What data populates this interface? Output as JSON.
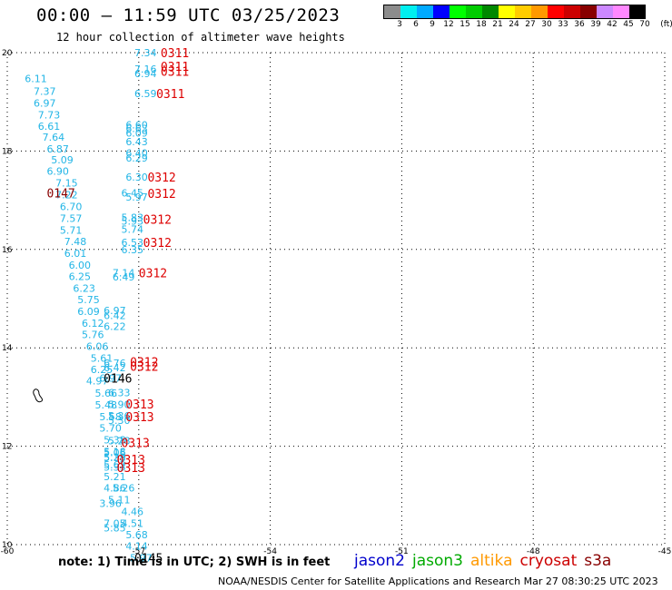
{
  "header": {
    "title": "00:00 – 11:59 UTC 03/25/2023",
    "subtitle": "12 hour collection of altimeter wave heights"
  },
  "colorbar": {
    "colors": [
      "#8c8c8c",
      "#00f0f0",
      "#00aaff",
      "#0000ff",
      "#00ff00",
      "#00cc00",
      "#008800",
      "#ffff00",
      "#ffcc00",
      "#ff9900",
      "#ff0000",
      "#cc0000",
      "#880000",
      "#cc88ff",
      "#ff88ff",
      "#000000"
    ],
    "labels": [
      "3",
      "6",
      "9",
      "12",
      "15",
      "18",
      "21",
      "24",
      "27",
      "30",
      "33",
      "36",
      "39",
      "42",
      "45",
      "70",
      "(ft)"
    ]
  },
  "map": {
    "x_axis": {
      "ticks": [
        "-60",
        "-57",
        "-54",
        "-51",
        "-48",
        "-45"
      ],
      "range": [
        -60,
        -45
      ]
    },
    "y_axis": {
      "ticks": [
        "10",
        "12",
        "14",
        "16",
        "18",
        "20"
      ],
      "range": [
        10,
        20
      ]
    },
    "swh_points": [
      {
        "lon": -59.6,
        "lat": 19.47,
        "value": "6.11",
        "color": "#22b5e6"
      },
      {
        "lon": -59.4,
        "lat": 19.22,
        "value": "7.37",
        "color": "#22b5e6"
      },
      {
        "lon": -59.4,
        "lat": 18.98,
        "value": "6.97",
        "color": "#22b5e6"
      },
      {
        "lon": -59.3,
        "lat": 18.74,
        "value": "7.73",
        "color": "#22b5e6"
      },
      {
        "lon": -59.3,
        "lat": 18.51,
        "value": "6.61",
        "color": "#22b5e6"
      },
      {
        "lon": -59.2,
        "lat": 18.28,
        "value": "7.64",
        "color": "#22b5e6"
      },
      {
        "lon": -59.1,
        "lat": 18.04,
        "value": "6.87",
        "color": "#22b5e6"
      },
      {
        "lon": -59.0,
        "lat": 17.82,
        "value": "5.09",
        "color": "#22b5e6"
      },
      {
        "lon": -59.1,
        "lat": 17.59,
        "value": "6.90",
        "color": "#22b5e6"
      },
      {
        "lon": -58.9,
        "lat": 17.35,
        "value": "7.15",
        "color": "#22b5e6"
      },
      {
        "lon": -58.9,
        "lat": 17.11,
        "value": "7.22",
        "color": "#22b5e6"
      },
      {
        "lon": -58.8,
        "lat": 16.87,
        "value": "6.70",
        "color": "#22b5e6"
      },
      {
        "lon": -58.8,
        "lat": 16.63,
        "value": "7.57",
        "color": "#22b5e6"
      },
      {
        "lon": -58.8,
        "lat": 16.39,
        "value": "5.71",
        "color": "#22b5e6"
      },
      {
        "lon": -58.7,
        "lat": 16.16,
        "value": "7.48",
        "color": "#22b5e6"
      },
      {
        "lon": -58.7,
        "lat": 15.92,
        "value": "6.01",
        "color": "#22b5e6"
      },
      {
        "lon": -58.6,
        "lat": 15.68,
        "value": "6.00",
        "color": "#22b5e6"
      },
      {
        "lon": -58.6,
        "lat": 15.45,
        "value": "6.25",
        "color": "#22b5e6"
      },
      {
        "lon": -58.5,
        "lat": 15.21,
        "value": "6.23",
        "color": "#22b5e6"
      },
      {
        "lon": -58.4,
        "lat": 14.98,
        "value": "5.75",
        "color": "#22b5e6"
      },
      {
        "lon": -58.4,
        "lat": 14.74,
        "value": "6.09",
        "color": "#22b5e6"
      },
      {
        "lon": -58.3,
        "lat": 14.5,
        "value": "6.12",
        "color": "#22b5e6"
      },
      {
        "lon": -58.3,
        "lat": 14.27,
        "value": "5.76",
        "color": "#22b5e6"
      },
      {
        "lon": -58.2,
        "lat": 14.03,
        "value": "6.06",
        "color": "#22b5e6"
      },
      {
        "lon": -58.1,
        "lat": 13.79,
        "value": "5.61",
        "color": "#22b5e6"
      },
      {
        "lon": -58.1,
        "lat": 13.56,
        "value": "6.25",
        "color": "#22b5e6"
      },
      {
        "lon": -58.2,
        "lat": 13.33,
        "value": "4.97",
        "color": "#22b5e6"
      },
      {
        "lon": -58.0,
        "lat": 13.08,
        "value": "5.66",
        "color": "#22b5e6"
      },
      {
        "lon": -58.0,
        "lat": 12.84,
        "value": "5.48",
        "color": "#22b5e6"
      },
      {
        "lon": -57.9,
        "lat": 12.6,
        "value": "5.58",
        "color": "#22b5e6"
      },
      {
        "lon": -57.9,
        "lat": 12.37,
        "value": "5.70",
        "color": "#22b5e6"
      },
      {
        "lon": -57.8,
        "lat": 12.13,
        "value": "5.38",
        "color": "#22b5e6"
      },
      {
        "lon": -57.8,
        "lat": 11.89,
        "value": "5.18",
        "color": "#22b5e6"
      },
      {
        "lon": -57.8,
        "lat": 11.78,
        "value": "5.29",
        "color": "#22b5e6"
      },
      {
        "lon": -57.8,
        "lat": 11.62,
        "value": "5.62",
        "color": "#22b5e6"
      },
      {
        "lon": -57.8,
        "lat": 11.38,
        "value": "5.21",
        "color": "#22b5e6"
      },
      {
        "lon": -57.8,
        "lat": 11.15,
        "value": "4.86",
        "color": "#22b5e6"
      },
      {
        "lon": -57.6,
        "lat": 11.15,
        "value": "5.26",
        "color": "#22b5e6"
      },
      {
        "lon": -57.7,
        "lat": 10.91,
        "value": "5.11",
        "color": "#22b5e6"
      },
      {
        "lon": -57.9,
        "lat": 10.84,
        "value": "3.96",
        "color": "#22b5e6"
      },
      {
        "lon": -57.4,
        "lat": 10.67,
        "value": "4.46",
        "color": "#22b5e6"
      },
      {
        "lon": -57.8,
        "lat": 10.43,
        "value": "7.05",
        "color": "#22b5e6"
      },
      {
        "lon": -57.4,
        "lat": 10.43,
        "value": "4.51",
        "color": "#22b5e6"
      },
      {
        "lon": -57.8,
        "lat": 10.34,
        "value": "5.85",
        "color": "#22b5e6"
      },
      {
        "lon": -57.3,
        "lat": 10.2,
        "value": "5.68",
        "color": "#22b5e6"
      },
      {
        "lon": -57.3,
        "lat": 9.97,
        "value": "4.14",
        "color": "#22b5e6"
      },
      {
        "lon": -57.2,
        "lat": 9.73,
        "value": "5.97",
        "color": "#22b5e6"
      },
      {
        "lon": -57.1,
        "lat": 20.0,
        "value": "7.34",
        "color": "#22b5e6"
      },
      {
        "lon": -57.1,
        "lat": 19.67,
        "value": "7.16",
        "color": "#22b5e6"
      },
      {
        "lon": -57.1,
        "lat": 19.58,
        "value": "6.94",
        "color": "#22b5e6"
      },
      {
        "lon": -57.1,
        "lat": 19.17,
        "value": "6.59",
        "color": "#22b5e6"
      },
      {
        "lon": -57.3,
        "lat": 18.53,
        "value": "6.60",
        "color": "#22b5e6"
      },
      {
        "lon": -57.3,
        "lat": 18.46,
        "value": "6.63",
        "color": "#22b5e6"
      },
      {
        "lon": -57.3,
        "lat": 18.37,
        "value": "6.09",
        "color": "#22b5e6"
      },
      {
        "lon": -57.3,
        "lat": 18.19,
        "value": "6.43",
        "color": "#22b5e6"
      },
      {
        "lon": -57.3,
        "lat": 17.96,
        "value": "6.40",
        "color": "#22b5e6"
      },
      {
        "lon": -57.3,
        "lat": 17.86,
        "value": "6.29",
        "color": "#22b5e6"
      },
      {
        "lon": -57.3,
        "lat": 17.47,
        "value": "6.30",
        "color": "#22b5e6"
      },
      {
        "lon": -57.4,
        "lat": 17.15,
        "value": "6.45",
        "color": "#22b5e6"
      },
      {
        "lon": -57.3,
        "lat": 17.07,
        "value": "5.97",
        "color": "#22b5e6"
      },
      {
        "lon": -57.4,
        "lat": 16.65,
        "value": "5.83",
        "color": "#22b5e6"
      },
      {
        "lon": -57.4,
        "lat": 16.58,
        "value": "5.93",
        "color": "#22b5e6"
      },
      {
        "lon": -57.4,
        "lat": 16.41,
        "value": "5.74",
        "color": "#22b5e6"
      },
      {
        "lon": -57.4,
        "lat": 16.14,
        "value": "6.53",
        "color": "#22b5e6"
      },
      {
        "lon": -57.4,
        "lat": 16.0,
        "value": "6.35",
        "color": "#22b5e6"
      },
      {
        "lon": -57.6,
        "lat": 15.53,
        "value": "7.14",
        "color": "#22b5e6"
      },
      {
        "lon": -57.6,
        "lat": 15.44,
        "value": "6.49",
        "color": "#22b5e6"
      },
      {
        "lon": -57.8,
        "lat": 14.76,
        "value": "6.97",
        "color": "#22b5e6"
      },
      {
        "lon": -57.8,
        "lat": 14.66,
        "value": "6.42",
        "color": "#22b5e6"
      },
      {
        "lon": -57.8,
        "lat": 14.44,
        "value": "6.22",
        "color": "#22b5e6"
      },
      {
        "lon": -57.8,
        "lat": 13.69,
        "value": "6.76",
        "color": "#22b5e6"
      },
      {
        "lon": -57.8,
        "lat": 13.6,
        "value": "6.42",
        "color": "#22b5e6"
      },
      {
        "lon": -57.9,
        "lat": 13.39,
        "value": "6.97",
        "color": "#22b5e6"
      },
      {
        "lon": -57.7,
        "lat": 13.09,
        "value": "6.33",
        "color": "#22b5e6"
      },
      {
        "lon": -57.7,
        "lat": 12.85,
        "value": "5.90",
        "color": "#22b5e6"
      },
      {
        "lon": -57.7,
        "lat": 12.62,
        "value": "5.36",
        "color": "#22b5e6"
      },
      {
        "lon": -57.7,
        "lat": 12.53,
        "value": "5.30",
        "color": "#22b5e6"
      },
      {
        "lon": -57.7,
        "lat": 12.11,
        "value": "5.28",
        "color": "#22b5e6"
      },
      {
        "lon": -57.8,
        "lat": 11.87,
        "value": "5.06",
        "color": "#22b5e6"
      },
      {
        "lon": -57.8,
        "lat": 11.77,
        "value": "5.38",
        "color": "#22b5e6"
      },
      {
        "lon": -57.8,
        "lat": 11.58,
        "value": "5.33",
        "color": "#22b5e6"
      }
    ],
    "sat_labels": [
      {
        "lon": -56.5,
        "lat": 20.0,
        "text": "0311",
        "color": "#dd0000"
      },
      {
        "lon": -56.5,
        "lat": 19.72,
        "text": "0311",
        "color": "#dd0000"
      },
      {
        "lon": -56.5,
        "lat": 19.62,
        "text": "0311",
        "color": "#dd0000"
      },
      {
        "lon": -56.6,
        "lat": 19.17,
        "text": "0311",
        "color": "#dd0000"
      },
      {
        "lon": -56.8,
        "lat": 17.47,
        "text": "0312",
        "color": "#dd0000"
      },
      {
        "lon": -56.8,
        "lat": 17.14,
        "text": "0312",
        "color": "#dd0000"
      },
      {
        "lon": -59.1,
        "lat": 17.15,
        "text": "0147",
        "color": "#880000"
      },
      {
        "lon": -56.9,
        "lat": 16.61,
        "text": "0312",
        "color": "#dd0000"
      },
      {
        "lon": -56.9,
        "lat": 16.14,
        "text": "0312",
        "color": "#dd0000"
      },
      {
        "lon": -57.0,
        "lat": 15.53,
        "text": "0312",
        "color": "#dd0000"
      },
      {
        "lon": -57.2,
        "lat": 13.72,
        "text": "0312",
        "color": "#dd0000"
      },
      {
        "lon": -57.2,
        "lat": 13.63,
        "text": "0312",
        "color": "#dd0000"
      },
      {
        "lon": -57.8,
        "lat": 13.39,
        "text": "0146",
        "color": "#000000"
      },
      {
        "lon": -57.3,
        "lat": 12.86,
        "text": "0313",
        "color": "#dd0000"
      },
      {
        "lon": -57.3,
        "lat": 12.6,
        "text": "0313",
        "color": "#dd0000"
      },
      {
        "lon": -57.4,
        "lat": 12.08,
        "text": "0313",
        "color": "#dd0000"
      },
      {
        "lon": -57.5,
        "lat": 11.73,
        "text": "0313",
        "color": "#dd0000"
      },
      {
        "lon": -57.5,
        "lat": 11.57,
        "text": "0313",
        "color": "#dd0000"
      },
      {
        "lon": -57.1,
        "lat": 9.73,
        "text": "0145",
        "color": "#000000"
      }
    ],
    "land_outline": "island"
  },
  "note": "note: 1) Time is in UTC; 2) SWH is in feet",
  "legend": [
    {
      "name": "jason2",
      "color": "#0000cc"
    },
    {
      "name": "jason3",
      "color": "#00aa00"
    },
    {
      "name": "altika",
      "color": "#ff9900"
    },
    {
      "name": "cryosat",
      "color": "#cc0000"
    },
    {
      "name": "s3a",
      "color": "#880000"
    }
  ],
  "footer": "NOAA/NESDIS Center for Satellite Applications and Research    Mar 27 08:30:25 UTC 2023"
}
